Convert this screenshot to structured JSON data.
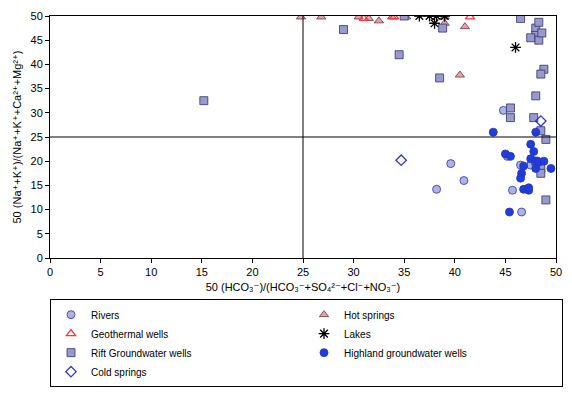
{
  "chart_data": {
    "type": "scatter",
    "x_label": "50 (HCO₃⁻)/(HCO₃⁻+SO₄²⁻+Cl⁻+NO₃⁻)",
    "y_label": "50 (Na⁺+K⁺)/(Na⁺+K⁺+Ca²⁺+Mg²⁺)",
    "xlim": [
      0,
      50
    ],
    "ylim": [
      0,
      50
    ],
    "xticks": [
      0,
      5,
      10,
      15,
      20,
      25,
      30,
      35,
      40,
      45,
      50
    ],
    "yticks": [
      0,
      5,
      10,
      15,
      20,
      25,
      30,
      35,
      40,
      45,
      50
    ],
    "grid": false,
    "legend": "bottom",
    "reference_lines": {
      "x": [
        25
      ],
      "y": [
        25
      ]
    },
    "series": [
      {
        "name": "Rivers",
        "color": "#aab4e6",
        "marker": "circle",
        "x": [
          44.8,
          39.6,
          38.2,
          40.9,
          45.2,
          46.5,
          47.5,
          45.7,
          46.6
        ],
        "y": [
          30.5,
          19.5,
          14.2,
          16.0,
          21.0,
          19.2,
          19.2,
          14.0,
          9.5
        ]
      },
      {
        "name": "Hot springs",
        "color": "#e8a0b0",
        "marker": "triangle-up",
        "x": [
          24.8,
          26.8,
          30.5,
          31.5,
          32.5,
          33.8,
          35.2,
          39.0,
          39.0,
          41.0,
          40.5
        ],
        "y": [
          49.8,
          49.8,
          49.8,
          49.5,
          49.0,
          49.8,
          49.8,
          48.5,
          49.8,
          47.8,
          37.8
        ]
      },
      {
        "name": "Geothermal wells",
        "color": "#ff3333",
        "marker": "triangle-up-open",
        "x": [
          31.0,
          34.0,
          41.5
        ],
        "y": [
          49.5,
          49.8,
          49.8
        ]
      },
      {
        "name": "Lakes",
        "color": "#000000",
        "marker": "asterisk-open",
        "x": [
          36.5,
          37.5,
          38.2,
          39.0,
          38.0,
          46.0
        ],
        "y": [
          50.0,
          50.0,
          50.0,
          50.0,
          48.5,
          43.5
        ]
      },
      {
        "name": "Rift Groundwater wells",
        "color": "#9999cc",
        "marker": "square",
        "x": [
          15.2,
          29.0,
          34.5,
          35.0,
          38.5,
          38.8,
          46.5,
          48.0,
          48.3,
          48.0,
          48.3,
          48.8,
          48.5,
          48.0,
          45.5,
          45.5,
          47.8,
          48.5,
          49.0,
          48.0,
          48.5,
          48.5,
          49.0,
          47.5,
          48.6
        ],
        "y": [
          32.5,
          47.2,
          42.0,
          50.0,
          37.2,
          47.5,
          49.5,
          47.5,
          48.7,
          46.0,
          45.0,
          39.0,
          38.0,
          33.5,
          31.0,
          29.0,
          29.0,
          26.3,
          24.5,
          20.0,
          18.5,
          17.5,
          12.0,
          45.5,
          46.5
        ]
      },
      {
        "name": "Highland groundwater wells",
        "color": "#1a3de6",
        "marker": "circle",
        "x": [
          43.8,
          45.0,
          45.5,
          46.8,
          47.5,
          47.8,
          48.0,
          47.5,
          48.0,
          48.3,
          48.8,
          49.5,
          48.0,
          46.8,
          47.3,
          47.3,
          46.6,
          45.4,
          46.5
        ],
        "y": [
          26.0,
          21.5,
          21.0,
          19.0,
          23.5,
          22.0,
          26.0,
          20.5,
          20.0,
          19.8,
          20.0,
          18.5,
          18.5,
          14.2,
          14.0,
          14.5,
          17.5,
          9.5,
          16.5
        ]
      },
      {
        "name": "Cold springs",
        "color": "#3333cc",
        "marker": "diamond-open",
        "x": [
          34.7,
          48.5
        ],
        "y": [
          20.2,
          28.3
        ]
      }
    ]
  }
}
